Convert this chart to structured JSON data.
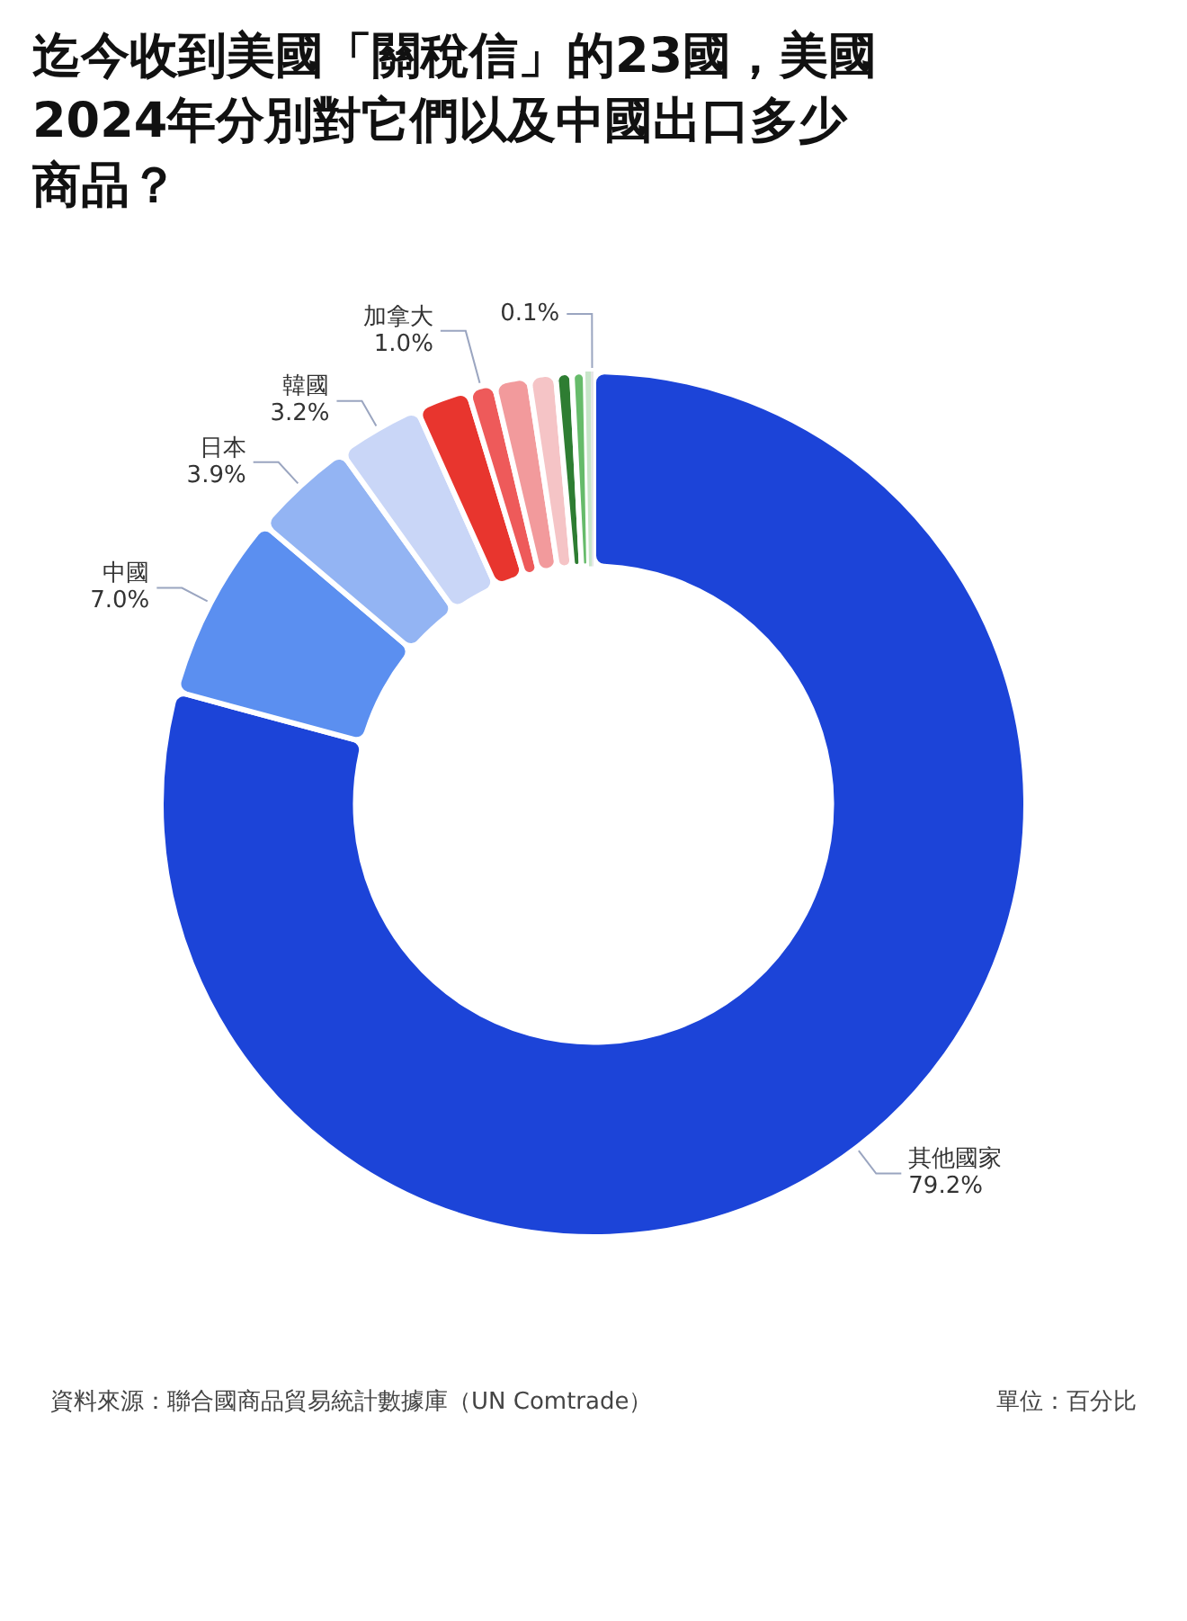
{
  "chart_data": {
    "type": "donut",
    "title": "迄今收到美國「關稅信」的23國，美國2024年分別對它們以及中國出口多少商品？",
    "categories": [
      "其他國家",
      "中國",
      "日本",
      "韓國",
      null,
      "加拿大",
      null,
      null,
      null,
      null,
      null,
      null
    ],
    "values": [
      79.2,
      7.0,
      3.9,
      3.2,
      2.0,
      1.0,
      1.3,
      1.0,
      0.6,
      0.5,
      0.2,
      0.1
    ],
    "value_labels": [
      "79.2%",
      "7.0%",
      "3.9%",
      "3.2%",
      null,
      "1.0%",
      null,
      null,
      null,
      null,
      null,
      "0.1%"
    ],
    "colors": [
      "#1c44d8",
      "#5b8ff0",
      "#93b4f3",
      "#c9d6f7",
      "#e8352e",
      "#ee5a5a",
      "#f29a9c",
      "#f5c4c6",
      "#2e7d32",
      "#66bb6a",
      "#c8e6c9",
      "#e6e6e6"
    ],
    "legend": false,
    "annotations": [
      "資料來源：聯合國商品貿易統計數據庫（UN Comtrade）",
      "單位：百分比"
    ]
  }
}
